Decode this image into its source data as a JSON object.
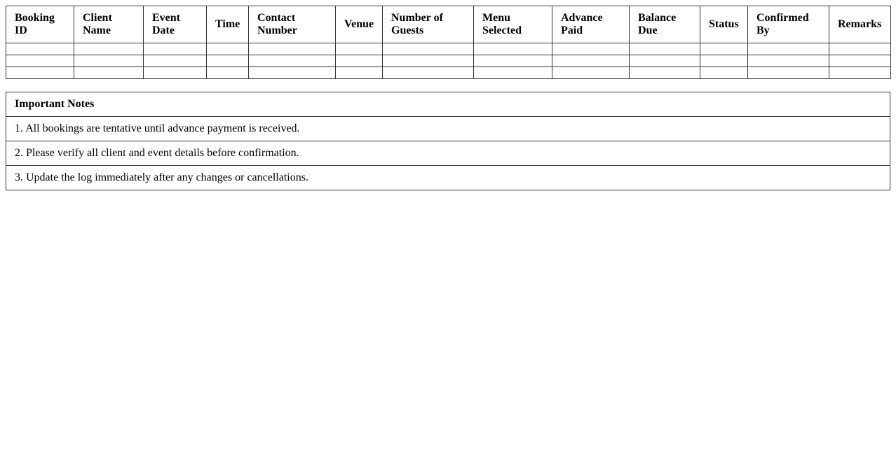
{
  "booking_table": {
    "columns": [
      "Booking ID",
      "Client Name",
      "Event Date",
      "Time",
      "Contact Number",
      "Venue",
      "Number of Guests",
      "Menu Selected",
      "Advance Paid",
      "Balance Due",
      "Status",
      "Confirmed By",
      "Remarks"
    ],
    "rows": [
      [
        "",
        "",
        "",
        "",
        "",
        "",
        "",
        "",
        "",
        "",
        "",
        "",
        ""
      ],
      [
        "",
        "",
        "",
        "",
        "",
        "",
        "",
        "",
        "",
        "",
        "",
        "",
        ""
      ],
      [
        "",
        "",
        "",
        "",
        "",
        "",
        "",
        "",
        "",
        "",
        "",
        "",
        ""
      ]
    ]
  },
  "notes": {
    "title": "Important Notes",
    "items": [
      "1. All bookings are tentative until advance payment is received.",
      "2. Please verify all client and event details before confirmation.",
      "3. Update the log immediately after any changes or cancellations."
    ]
  }
}
